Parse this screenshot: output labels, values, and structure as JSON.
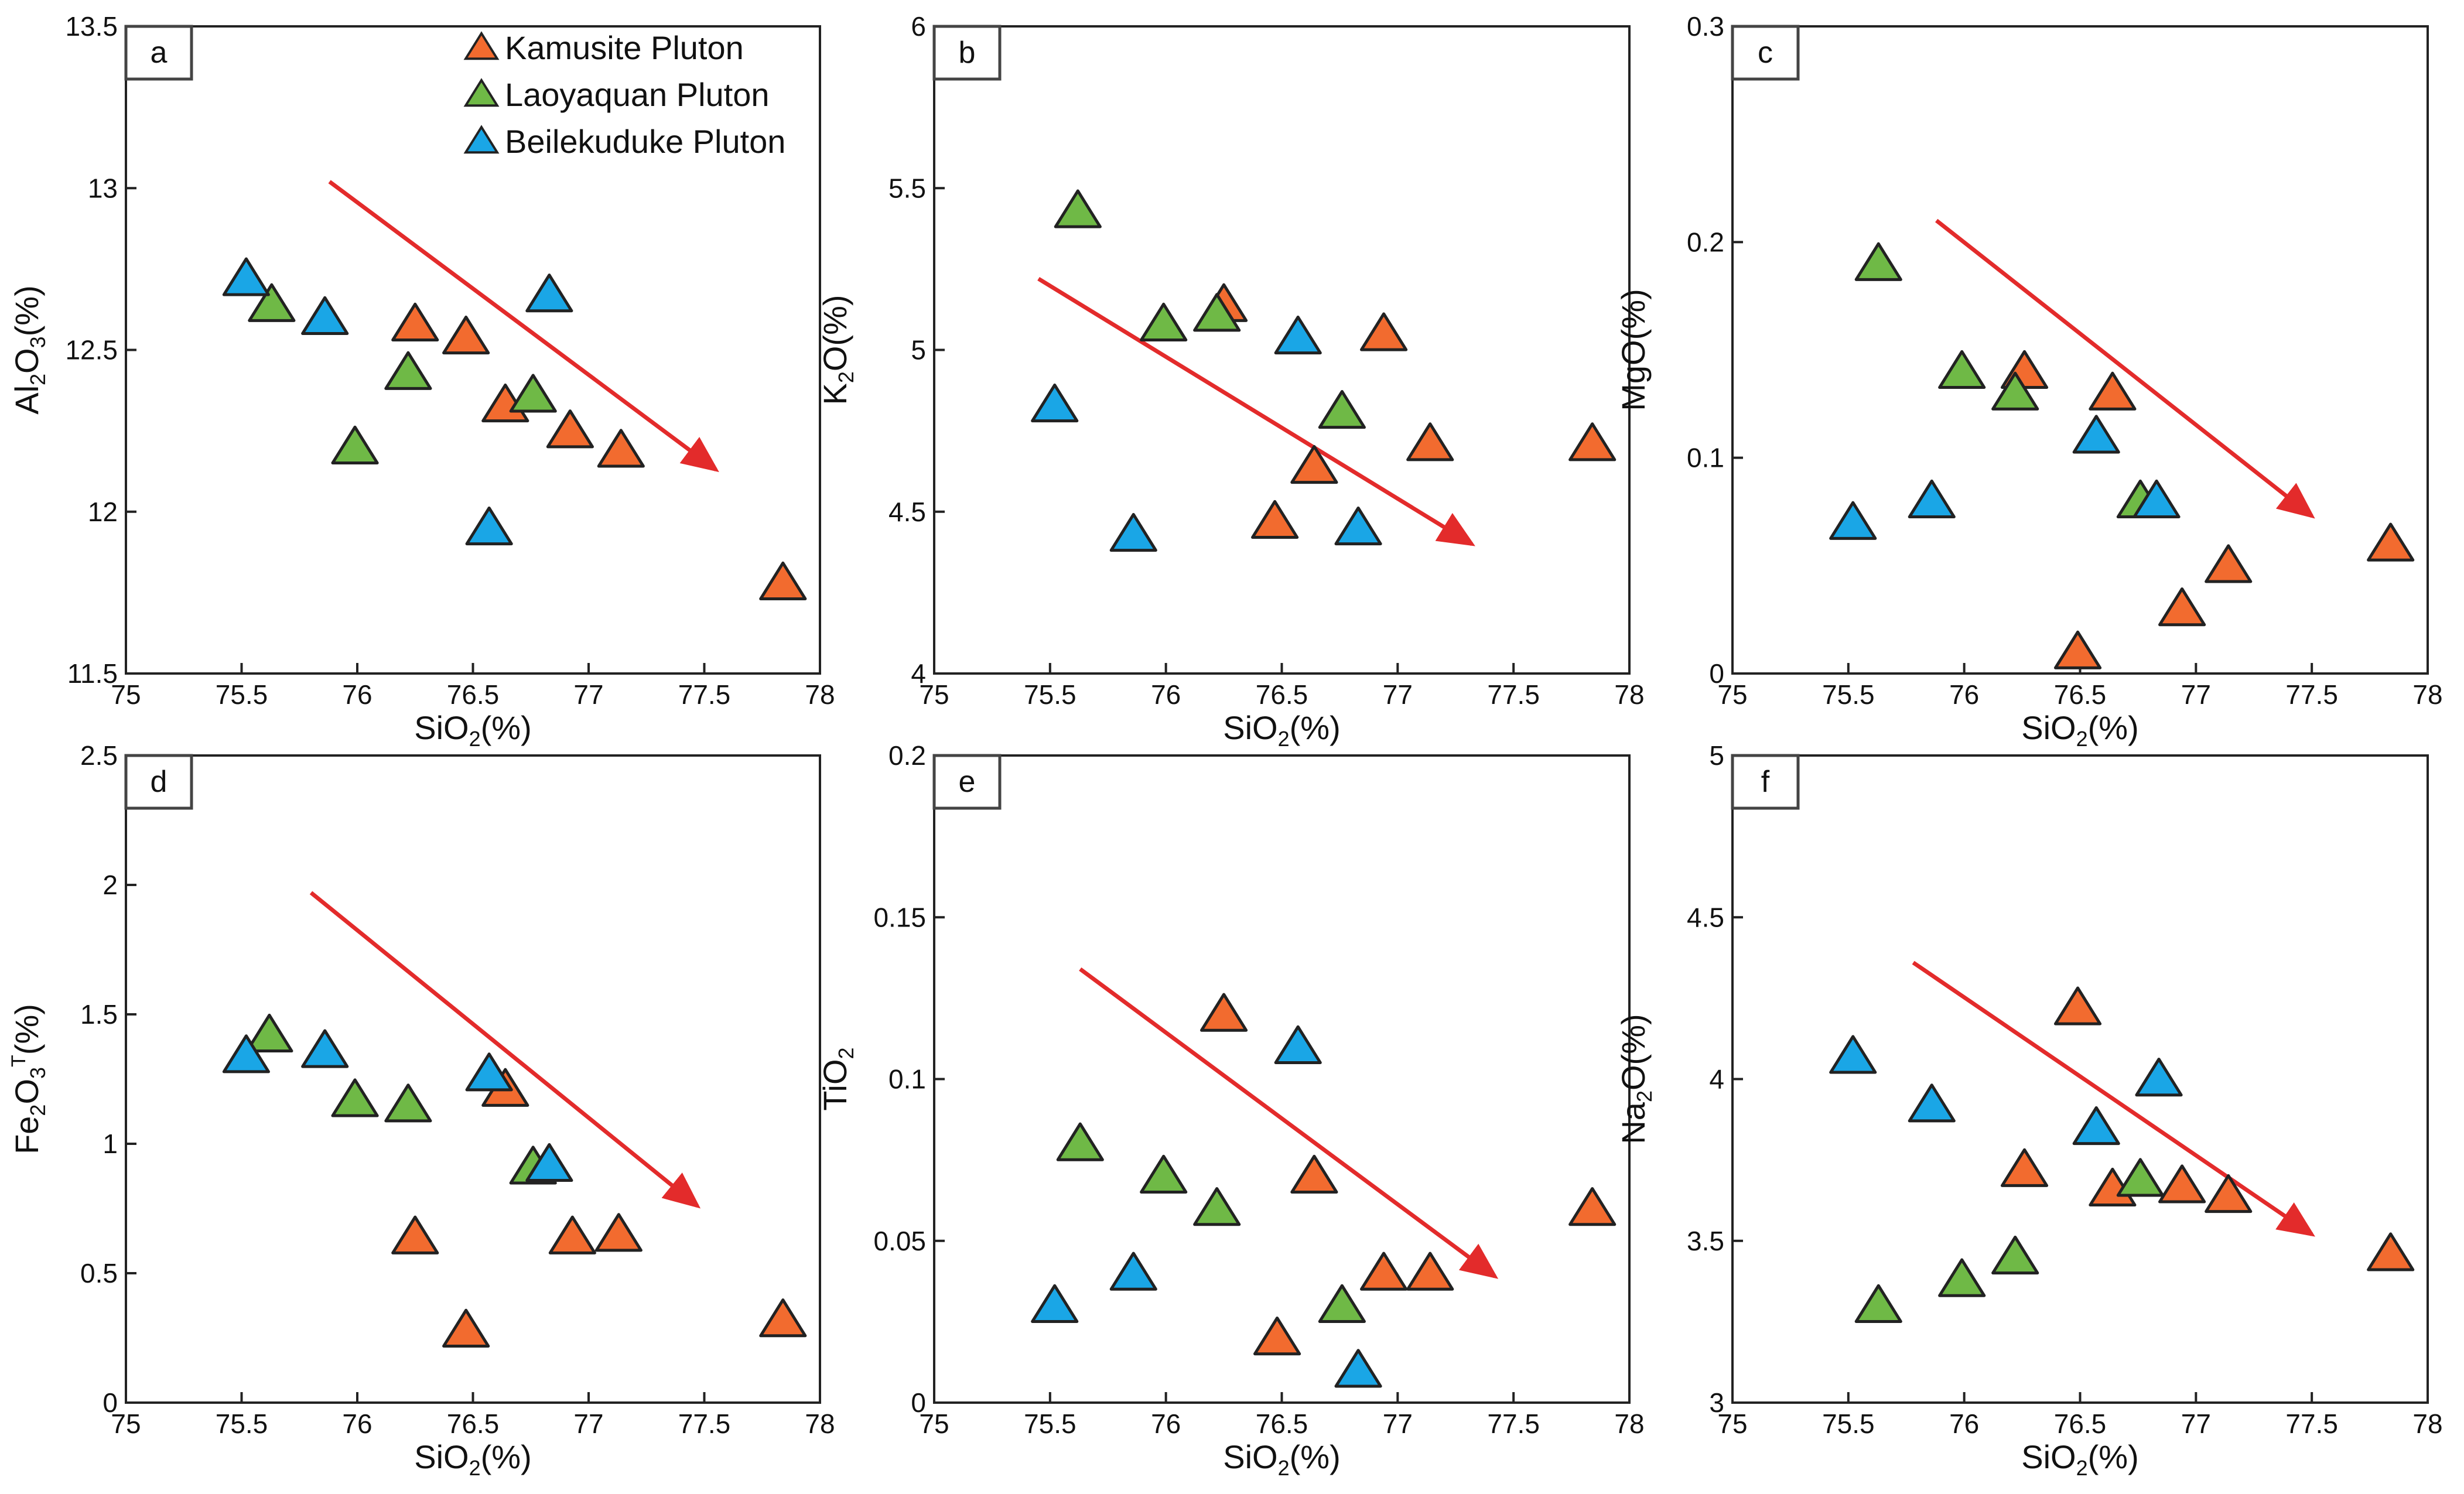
{
  "colors": {
    "kamusite": "#f26b2f",
    "laoyaquan": "#6fb946",
    "beilekuduke": "#1aa6e6",
    "trend": "#e32b2b",
    "marker_stroke": "#222222"
  },
  "legend": {
    "items": [
      {
        "key": "kamusite",
        "label": "Kamusite Pluton"
      },
      {
        "key": "laoyaquan",
        "label": "Laoyaquan Pluton"
      },
      {
        "key": "beilekuduke",
        "label": "Beilekuduke Pluton"
      }
    ]
  },
  "chart_data": [
    {
      "type": "scatter",
      "panel": "a",
      "xlabel": {
        "main": "SiO",
        "sub": "2",
        "tail": "(%)"
      },
      "ylabel": {
        "main": "Al",
        "sub": "2",
        "mid": "O",
        "sub2": "3",
        "tail": "(%)"
      },
      "xlim": [
        75,
        78
      ],
      "ylim": [
        11.5,
        13.5
      ],
      "xticks": [
        "75",
        "75.5",
        "76",
        "76.5",
        "77",
        "77.5",
        "78"
      ],
      "yticks": [
        "11.5",
        "12",
        "12.5",
        "13",
        "13.5"
      ],
      "series": [
        {
          "name": "Kamusite Pluton",
          "key": "kamusite",
          "points": [
            [
              76.25,
              12.58
            ],
            [
              76.47,
              12.54
            ],
            [
              76.64,
              12.33
            ],
            [
              76.92,
              12.25
            ],
            [
              77.14,
              12.19
            ],
            [
              77.84,
              11.78
            ]
          ]
        },
        {
          "name": "Laoyaquan Pluton",
          "key": "laoyaquan",
          "points": [
            [
              75.63,
              12.64
            ],
            [
              75.99,
              12.2
            ],
            [
              76.22,
              12.43
            ],
            [
              76.76,
              12.36
            ]
          ]
        },
        {
          "name": "Beilekuduke Pluton",
          "key": "beilekuduke",
          "points": [
            [
              75.52,
              12.72
            ],
            [
              75.86,
              12.6
            ],
            [
              76.57,
              11.95
            ],
            [
              76.83,
              12.67
            ]
          ]
        }
      ],
      "trend": [
        [
          75.88,
          13.02
        ],
        [
          77.55,
          12.13
        ]
      ]
    },
    {
      "type": "scatter",
      "panel": "b",
      "xlabel": {
        "main": "SiO",
        "sub": "2",
        "tail": "(%)"
      },
      "ylabel": {
        "main": "K",
        "sub": "2",
        "mid": "O",
        "sub2": "",
        "tail": "(%)"
      },
      "xlim": [
        75,
        78
      ],
      "ylim": [
        4,
        6
      ],
      "xticks": [
        "75",
        "75.5",
        "76",
        "76.5",
        "77",
        "77.5",
        "78"
      ],
      "yticks": [
        "4",
        "4.5",
        "5",
        "5.5",
        "6"
      ],
      "series": [
        {
          "name": "Kamusite Pluton",
          "key": "kamusite",
          "points": [
            [
              76.25,
              5.14
            ],
            [
              76.47,
              4.47
            ],
            [
              76.64,
              4.64
            ],
            [
              76.94,
              5.05
            ],
            [
              77.14,
              4.71
            ],
            [
              77.84,
              4.71
            ]
          ]
        },
        {
          "name": "Laoyaquan Pluton",
          "key": "laoyaquan",
          "points": [
            [
              75.62,
              5.43
            ],
            [
              75.99,
              5.08
            ],
            [
              76.22,
              5.11
            ],
            [
              76.76,
              4.81
            ]
          ]
        },
        {
          "name": "Beilekuduke Pluton",
          "key": "beilekuduke",
          "points": [
            [
              75.52,
              4.83
            ],
            [
              75.86,
              4.43
            ],
            [
              76.57,
              5.04
            ],
            [
              76.83,
              4.45
            ]
          ]
        }
      ],
      "trend": [
        [
          75.45,
          5.22
        ],
        [
          77.32,
          4.4
        ]
      ]
    },
    {
      "type": "scatter",
      "panel": "c",
      "xlabel": {
        "main": "SiO",
        "sub": "2",
        "tail": "(%)"
      },
      "ylabel": {
        "main": "MgO",
        "sub": "",
        "mid": "",
        "sub2": "",
        "tail": "(%)"
      },
      "xlim": [
        75,
        78
      ],
      "ylim": [
        0,
        0.3
      ],
      "xticks": [
        "75",
        "75.5",
        "76",
        "76.5",
        "77",
        "77.5",
        "78"
      ],
      "yticks": [
        "0",
        "0.1",
        "0.2",
        "0.3"
      ],
      "series": [
        {
          "name": "Kamusite Pluton",
          "key": "kamusite",
          "points": [
            [
              76.26,
              0.14
            ],
            [
              76.64,
              0.13
            ],
            [
              76.49,
              0.01
            ],
            [
              76.94,
              0.03
            ],
            [
              77.14,
              0.05
            ],
            [
              77.84,
              0.06
            ]
          ]
        },
        {
          "name": "Laoyaquan Pluton",
          "key": "laoyaquan",
          "points": [
            [
              75.63,
              0.19
            ],
            [
              75.99,
              0.14
            ],
            [
              76.22,
              0.13
            ],
            [
              76.76,
              0.08
            ]
          ]
        },
        {
          "name": "Beilekuduke Pluton",
          "key": "beilekuduke",
          "points": [
            [
              75.52,
              0.07
            ],
            [
              75.86,
              0.08
            ],
            [
              76.57,
              0.11
            ],
            [
              76.83,
              0.08
            ]
          ]
        }
      ],
      "trend": [
        [
          75.88,
          0.21
        ],
        [
          77.5,
          0.073
        ]
      ]
    },
    {
      "type": "scatter",
      "panel": "d",
      "xlabel": {
        "main": "SiO",
        "sub": "2",
        "tail": "(%)"
      },
      "ylabel": {
        "main": "Fe",
        "sub": "2",
        "mid": "O",
        "sub2": "3",
        "sup": "T",
        "tail": "(%)"
      },
      "xlim": [
        75,
        78
      ],
      "ylim": [
        0,
        2.5
      ],
      "xticks": [
        "75",
        "75.5",
        "76",
        "76.5",
        "77",
        "77.5",
        "78"
      ],
      "yticks": [
        "0",
        "0.5",
        "1",
        "1.5",
        "2",
        "2.5"
      ],
      "series": [
        {
          "name": "Kamusite Pluton",
          "key": "kamusite",
          "points": [
            [
              76.25,
              0.64
            ],
            [
              76.64,
              1.21
            ],
            [
              76.47,
              0.28
            ],
            [
              76.93,
              0.64
            ],
            [
              77.13,
              0.65
            ],
            [
              77.84,
              0.32
            ]
          ]
        },
        {
          "name": "Laoyaquan Pluton",
          "key": "laoyaquan",
          "points": [
            [
              75.62,
              1.42
            ],
            [
              75.99,
              1.17
            ],
            [
              76.22,
              1.15
            ],
            [
              76.76,
              0.91
            ]
          ]
        },
        {
          "name": "Beilekuduke Pluton",
          "key": "beilekuduke",
          "points": [
            [
              75.52,
              1.34
            ],
            [
              75.86,
              1.36
            ],
            [
              76.57,
              1.27
            ],
            [
              76.83,
              0.92
            ]
          ]
        }
      ],
      "trend": [
        [
          75.8,
          1.97
        ],
        [
          77.47,
          0.76
        ]
      ]
    },
    {
      "type": "scatter",
      "panel": "e",
      "xlabel": {
        "main": "SiO",
        "sub": "2",
        "tail": "(%)"
      },
      "ylabel": {
        "main": "TiO",
        "sub": "2",
        "mid": "",
        "sub2": "",
        "tail": ""
      },
      "xlim": [
        75,
        78
      ],
      "ylim": [
        0,
        0.2
      ],
      "xticks": [
        "75",
        "75.5",
        "76",
        "76.5",
        "77",
        "77.5",
        "78"
      ],
      "yticks": [
        "0",
        "0.05",
        "0.1",
        "0.15",
        "0.2"
      ],
      "series": [
        {
          "name": "Kamusite Pluton",
          "key": "kamusite",
          "points": [
            [
              76.25,
              0.12
            ],
            [
              76.64,
              0.07
            ],
            [
              76.48,
              0.02
            ],
            [
              76.94,
              0.04
            ],
            [
              77.14,
              0.04
            ],
            [
              77.84,
              0.06
            ]
          ]
        },
        {
          "name": "Laoyaquan Pluton",
          "key": "laoyaquan",
          "points": [
            [
              75.63,
              0.08
            ],
            [
              75.99,
              0.07
            ],
            [
              76.22,
              0.06
            ],
            [
              76.76,
              0.03
            ]
          ]
        },
        {
          "name": "Beilekuduke Pluton",
          "key": "beilekuduke",
          "points": [
            [
              75.52,
              0.03
            ],
            [
              75.86,
              0.04
            ],
            [
              76.57,
              0.11
            ],
            [
              76.83,
              0.01
            ]
          ]
        }
      ],
      "trend": [
        [
          75.63,
          0.134
        ],
        [
          77.42,
          0.039
        ]
      ]
    },
    {
      "type": "scatter",
      "panel": "f",
      "xlabel": {
        "main": "SiO",
        "sub": "2",
        "tail": "(%)"
      },
      "ylabel": {
        "main": "Na",
        "sub": "2",
        "mid": "O",
        "sub2": "",
        "tail": "(%)"
      },
      "xlim": [
        75,
        78
      ],
      "ylim": [
        3,
        5
      ],
      "xticks": [
        "75",
        "75.5",
        "76",
        "76.5",
        "77",
        "77.5",
        "78"
      ],
      "yticks": [
        "3",
        "3.5",
        "4",
        "4.5",
        "5"
      ],
      "series": [
        {
          "name": "Kamusite Pluton",
          "key": "kamusite",
          "points": [
            [
              76.26,
              3.72
            ],
            [
              76.49,
              4.22
            ],
            [
              76.64,
              3.66
            ],
            [
              76.94,
              3.67
            ],
            [
              77.14,
              3.64
            ],
            [
              77.84,
              3.46
            ]
          ]
        },
        {
          "name": "Laoyaquan Pluton",
          "key": "laoyaquan",
          "points": [
            [
              75.63,
              3.3
            ],
            [
              75.99,
              3.38
            ],
            [
              76.22,
              3.45
            ],
            [
              76.76,
              3.69
            ]
          ]
        },
        {
          "name": "Beilekuduke Pluton",
          "key": "beilekuduke",
          "points": [
            [
              75.52,
              4.07
            ],
            [
              75.86,
              3.92
            ],
            [
              76.57,
              3.85
            ],
            [
              76.84,
              4.0
            ]
          ]
        }
      ],
      "trend": [
        [
          75.78,
          4.36
        ],
        [
          77.5,
          3.52
        ]
      ]
    }
  ]
}
